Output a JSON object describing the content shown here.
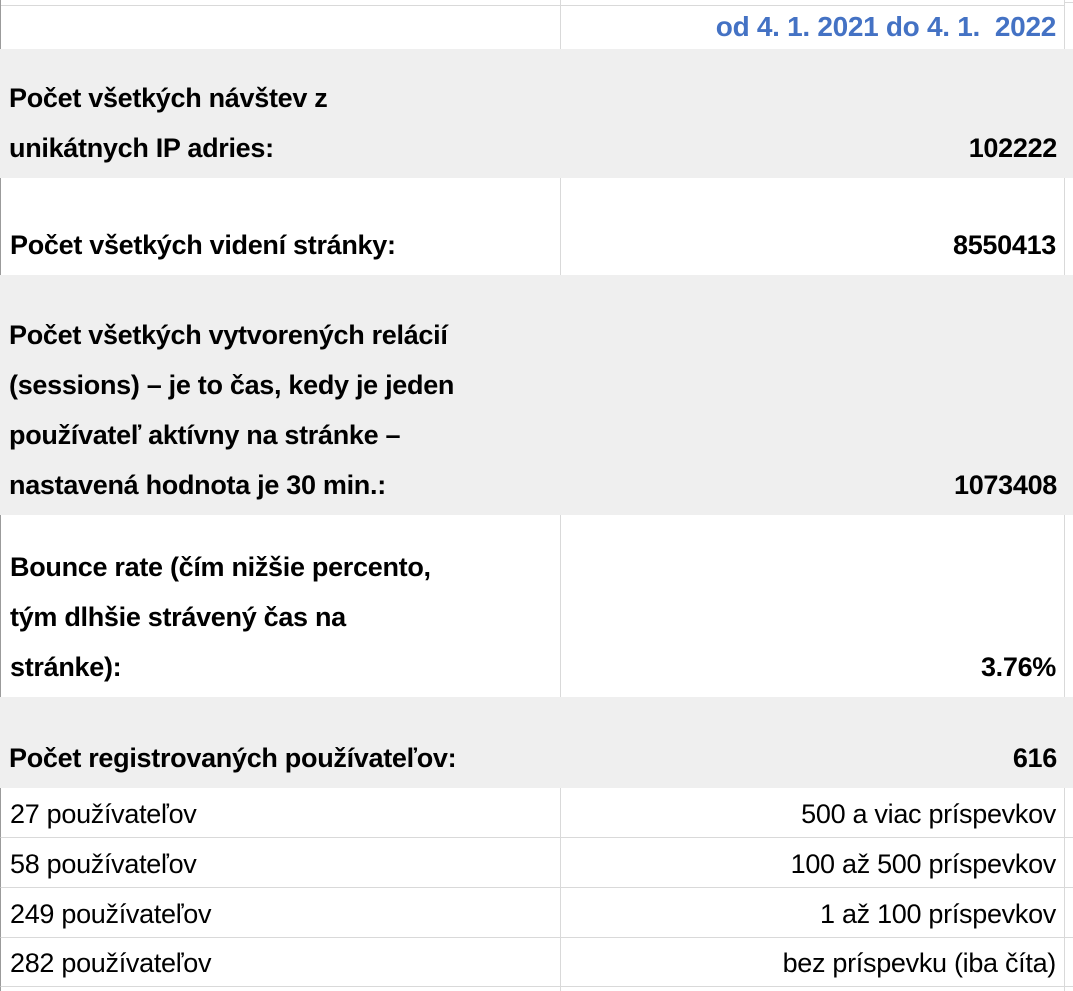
{
  "table": {
    "header": {
      "period": "od 4. 1. 2021 do 4. 1.  2022"
    },
    "stats": [
      {
        "label": "Počet všetkých návštev z\nunikátnych IP adries:",
        "value": "102222"
      },
      {
        "label": "Počet všetkých videní stránky:",
        "value": "8550413"
      },
      {
        "label": "Počet všetkých vytvorených relácií\n(sessions) – je to čas, kedy je jeden\npoužívateľ aktívny na stránke –\nnastavená hodnota je 30 min.:",
        "value": "1073408"
      },
      {
        "label": "Bounce rate (čím nižšie percento,\ntým dlhšie strávený čas na\nstránke):",
        "value": "3.76%"
      },
      {
        "label": "Počet registrovaných používateľov:",
        "value": "616"
      }
    ],
    "user_breakdown": [
      {
        "users": "27 používateľov",
        "posts": "500 a viac príspevkov"
      },
      {
        "users": "58 používateľov",
        "posts": "100 až 500 príspevkov"
      },
      {
        "users": "249 používateľov",
        "posts": "1 až 100 príspevkov"
      },
      {
        "users": "282 používateľov",
        "posts": "bez príspevku (iba číta)"
      }
    ]
  },
  "colors": {
    "accent_blue": "#4472C4",
    "row_shade": "#EFEFEF",
    "gridline": "#D9D9D9"
  }
}
